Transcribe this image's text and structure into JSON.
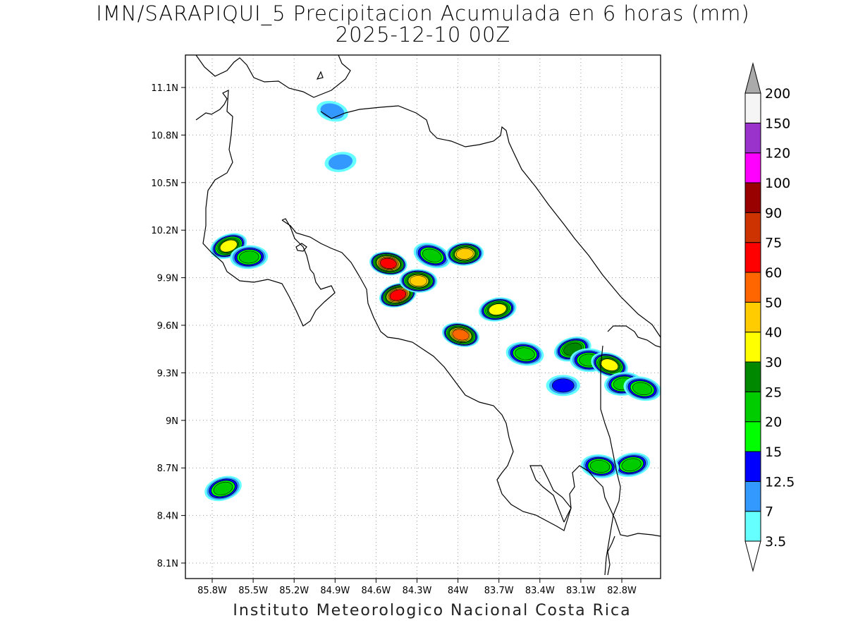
{
  "header": {
    "title_line1": "IMN/SARAPIQUI_5 Precipitacion Acumulada en 6 horas (mm)",
    "title_line2": "2025-12-10 00Z"
  },
  "footer": {
    "credit": "Instituto Meteorologico Nacional Costa Rica"
  },
  "map": {
    "lon_range": [
      -86.0,
      -83.0
    ],
    "lat_range": [
      8.0,
      11.3
    ],
    "lon_ticks": [
      {
        "value": -85.8,
        "label": "85.8W"
      },
      {
        "value": -85.5,
        "label": "85.5W"
      },
      {
        "value": -85.2,
        "label": "85.2W"
      },
      {
        "value": -84.9,
        "label": "84.9W"
      },
      {
        "value": -84.6,
        "label": "84.6W"
      },
      {
        "value": -84.3,
        "label": "84.3W"
      },
      {
        "value": -84.0,
        "label": "84W"
      },
      {
        "value": -83.7,
        "label": "83.7W"
      },
      {
        "value": -83.4,
        "label": "83.4W"
      },
      {
        "value": -83.1,
        "label": "83.1W"
      },
      {
        "value": -82.8,
        "label": "82.8W"
      }
    ],
    "lat_ticks": [
      {
        "value": 11.1,
        "label": "11.1N"
      },
      {
        "value": 10.8,
        "label": "10.8N"
      },
      {
        "value": 10.5,
        "label": "10.5N"
      },
      {
        "value": 10.2,
        "label": "10.2N"
      },
      {
        "value": 9.9,
        "label": "9.9N"
      },
      {
        "value": 9.6,
        "label": "9.6N"
      },
      {
        "value": 9.3,
        "label": "9.3N"
      },
      {
        "value": 9.0,
        "label": "9N"
      },
      {
        "value": 8.7,
        "label": "8.7N"
      },
      {
        "value": 8.4,
        "label": "8.4N"
      },
      {
        "value": 8.1,
        "label": "8.1N"
      }
    ],
    "grid": true,
    "units": "mm"
  },
  "colorbar": {
    "levels": [
      {
        "label": "3.5",
        "color": "#66ffff"
      },
      {
        "label": "7",
        "color": "#3399ff"
      },
      {
        "label": "12.5",
        "color": "#0000ff"
      },
      {
        "label": "15",
        "color": "#00ff00"
      },
      {
        "label": "20",
        "color": "#00cc00"
      },
      {
        "label": "25",
        "color": "#008800"
      },
      {
        "label": "30",
        "color": "#ffff00"
      },
      {
        "label": "40",
        "color": "#ffcc00"
      },
      {
        "label": "50",
        "color": "#ff6600"
      },
      {
        "label": "60",
        "color": "#ff0000"
      },
      {
        "label": "75",
        "color": "#cc3300"
      },
      {
        "label": "90",
        "color": "#990000"
      },
      {
        "label": "100",
        "color": "#ff00ff"
      },
      {
        "label": "120",
        "color": "#9933cc"
      },
      {
        "label": "150",
        "color": "#f5f5f5"
      },
      {
        "label": "200",
        "color": "#aaaaaa"
      }
    ],
    "top_label": "200",
    "bottom_label": "3.5"
  },
  "precip_cells": [
    {
      "lon": -85.68,
      "lat": 10.1,
      "value": 30
    },
    {
      "lon": -85.53,
      "lat": 10.03,
      "value": 20
    },
    {
      "lon": -84.92,
      "lat": 10.95,
      "value": 7
    },
    {
      "lon": -84.86,
      "lat": 10.63,
      "value": 7
    },
    {
      "lon": -84.51,
      "lat": 9.99,
      "value": 60
    },
    {
      "lon": -84.44,
      "lat": 9.79,
      "value": 60
    },
    {
      "lon": -84.29,
      "lat": 9.88,
      "value": 40
    },
    {
      "lon": -84.19,
      "lat": 10.04,
      "value": 20
    },
    {
      "lon": -83.95,
      "lat": 10.05,
      "value": 40
    },
    {
      "lon": -83.98,
      "lat": 9.54,
      "value": 50
    },
    {
      "lon": -83.71,
      "lat": 9.7,
      "value": 30
    },
    {
      "lon": -83.51,
      "lat": 9.42,
      "value": 20
    },
    {
      "lon": -83.16,
      "lat": 9.45,
      "value": 25
    },
    {
      "lon": -83.04,
      "lat": 9.38,
      "value": 20
    },
    {
      "lon": -82.89,
      "lat": 9.35,
      "value": 30
    },
    {
      "lon": -82.79,
      "lat": 9.23,
      "value": 20
    },
    {
      "lon": -82.65,
      "lat": 9.2,
      "value": 20
    },
    {
      "lon": -82.73,
      "lat": 8.72,
      "value": 20
    },
    {
      "lon": -82.96,
      "lat": 8.71,
      "value": 20
    },
    {
      "lon": -85.72,
      "lat": 8.57,
      "value": 20
    },
    {
      "lon": -83.23,
      "lat": 9.22,
      "value": 12.5
    }
  ]
}
